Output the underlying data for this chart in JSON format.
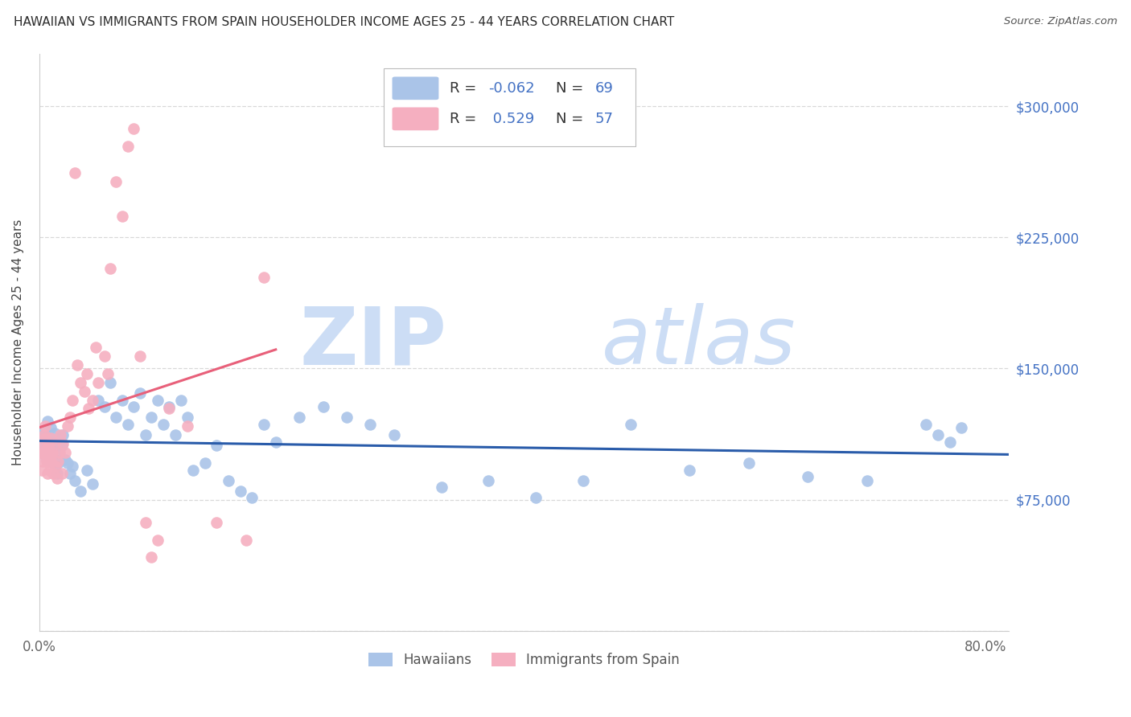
{
  "title": "HAWAIIAN VS IMMIGRANTS FROM SPAIN HOUSEHOLDER INCOME AGES 25 - 44 YEARS CORRELATION CHART",
  "source": "Source: ZipAtlas.com",
  "ylabel": "Householder Income Ages 25 - 44 years",
  "xlim": [
    0.0,
    0.82
  ],
  "ylim": [
    0,
    330000
  ],
  "yticks": [
    0,
    75000,
    150000,
    225000,
    300000
  ],
  "ytick_labels": [
    "",
    "$75,000",
    "$150,000",
    "$225,000",
    "$300,000"
  ],
  "hawaiians_label": "Hawaiians",
  "spain_label": "Immigrants from Spain",
  "hawaiians_color": "#aac4e8",
  "spain_color": "#f5afc0",
  "trend_hawaii_color": "#2a5caa",
  "trend_spain_color": "#e8607a",
  "watermark_zip": "ZIP",
  "watermark_atlas": "atlas",
  "watermark_color": "#ccddf5",
  "background_color": "#ffffff",
  "grid_color": "#d8d8d8",
  "title_color": "#2c2c2c",
  "right_tick_color": "#4472c4",
  "legend_label_color": "#333333",
  "legend_value_color": "#4472c4",
  "hawaiians_x": [
    0.002,
    0.003,
    0.004,
    0.005,
    0.006,
    0.007,
    0.008,
    0.009,
    0.01,
    0.011,
    0.012,
    0.013,
    0.014,
    0.015,
    0.016,
    0.017,
    0.018,
    0.019,
    0.02,
    0.022,
    0.024,
    0.026,
    0.028,
    0.03,
    0.035,
    0.04,
    0.045,
    0.05,
    0.055,
    0.06,
    0.065,
    0.07,
    0.075,
    0.08,
    0.085,
    0.09,
    0.095,
    0.1,
    0.105,
    0.11,
    0.115,
    0.12,
    0.125,
    0.13,
    0.14,
    0.15,
    0.16,
    0.17,
    0.18,
    0.19,
    0.2,
    0.22,
    0.24,
    0.26,
    0.28,
    0.3,
    0.34,
    0.38,
    0.42,
    0.46,
    0.5,
    0.55,
    0.6,
    0.65,
    0.7,
    0.75,
    0.76,
    0.77,
    0.78
  ],
  "hawaiians_y": [
    108000,
    102000,
    115000,
    112000,
    98000,
    120000,
    106000,
    110000,
    116000,
    102000,
    96000,
    113000,
    108000,
    90000,
    96000,
    104000,
    98000,
    106000,
    112000,
    98000,
    96000,
    90000,
    94000,
    86000,
    80000,
    92000,
    84000,
    132000,
    128000,
    142000,
    122000,
    132000,
    118000,
    128000,
    136000,
    112000,
    122000,
    132000,
    118000,
    128000,
    112000,
    132000,
    122000,
    92000,
    96000,
    106000,
    86000,
    80000,
    76000,
    118000,
    108000,
    122000,
    128000,
    122000,
    118000,
    112000,
    82000,
    86000,
    76000,
    86000,
    118000,
    92000,
    96000,
    88000,
    86000,
    118000,
    112000,
    108000,
    116000
  ],
  "spain_x": [
    0.001,
    0.002,
    0.003,
    0.003,
    0.004,
    0.004,
    0.005,
    0.005,
    0.006,
    0.006,
    0.007,
    0.007,
    0.008,
    0.008,
    0.009,
    0.009,
    0.01,
    0.01,
    0.011,
    0.012,
    0.013,
    0.014,
    0.015,
    0.016,
    0.017,
    0.018,
    0.019,
    0.02,
    0.022,
    0.024,
    0.026,
    0.028,
    0.03,
    0.032,
    0.035,
    0.038,
    0.04,
    0.042,
    0.045,
    0.048,
    0.05,
    0.055,
    0.058,
    0.06,
    0.065,
    0.07,
    0.075,
    0.08,
    0.085,
    0.09,
    0.095,
    0.1,
    0.11,
    0.125,
    0.15,
    0.175,
    0.19
  ],
  "spain_y": [
    102000,
    92000,
    97000,
    102000,
    107000,
    112000,
    110000,
    117000,
    97000,
    104000,
    90000,
    97000,
    102000,
    107000,
    99000,
    92000,
    110000,
    97000,
    102000,
    90000,
    107000,
    94000,
    87000,
    97000,
    102000,
    112000,
    90000,
    107000,
    102000,
    117000,
    122000,
    132000,
    262000,
    152000,
    142000,
    137000,
    147000,
    127000,
    132000,
    162000,
    142000,
    157000,
    147000,
    207000,
    257000,
    237000,
    277000,
    287000,
    157000,
    62000,
    42000,
    52000,
    127000,
    117000,
    62000,
    52000,
    202000
  ],
  "hawaii_R": "-0.062",
  "hawaii_N": "69",
  "spain_R": "0.529",
  "spain_N": "57"
}
